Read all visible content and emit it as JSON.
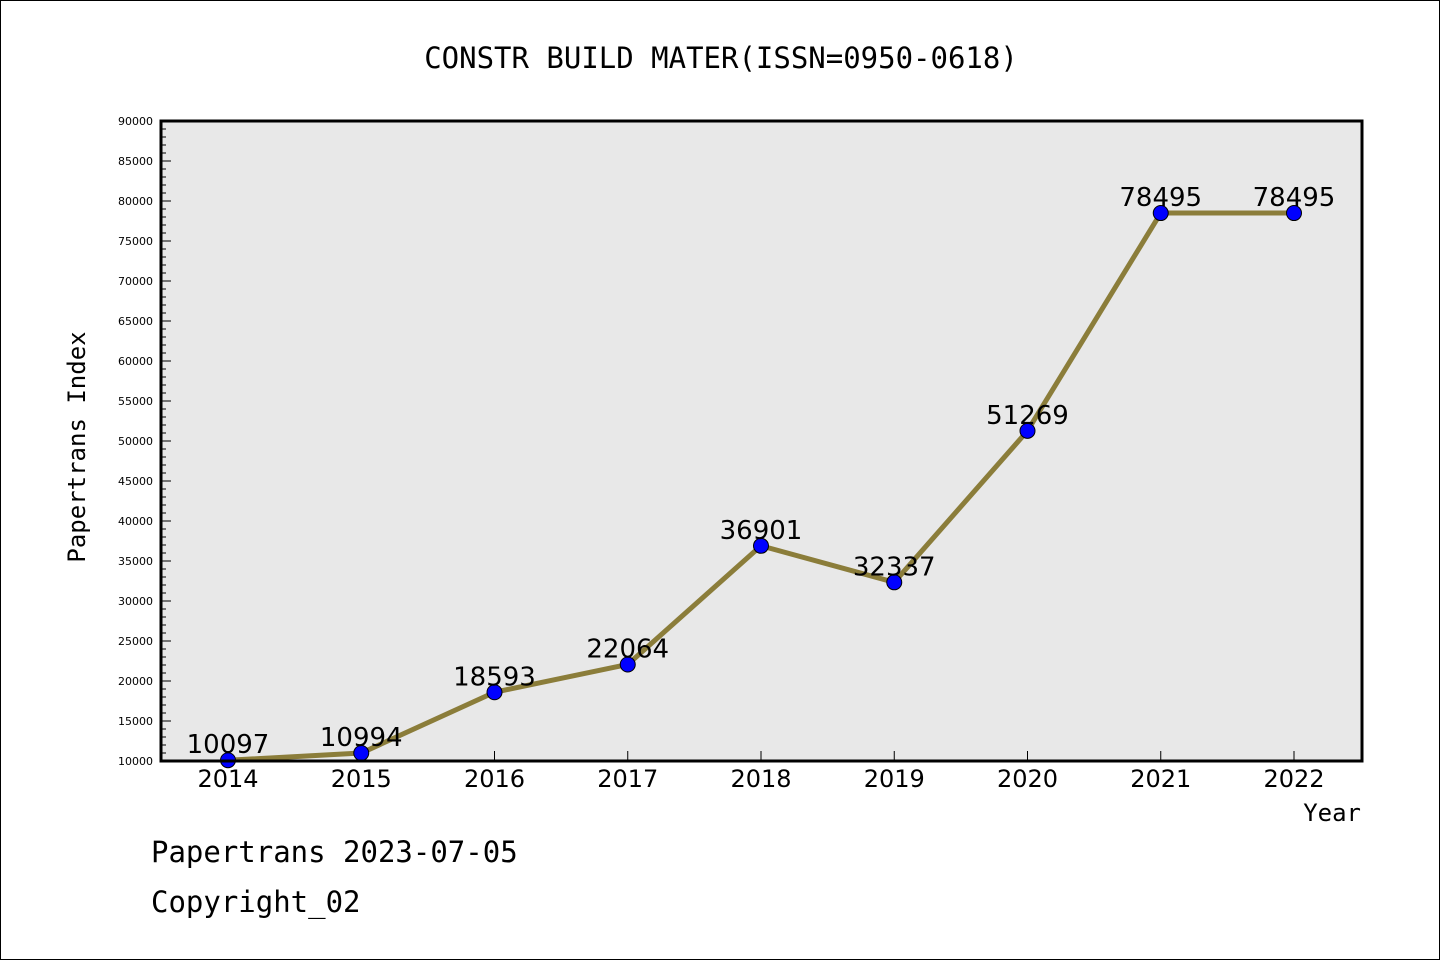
{
  "chart_data": {
    "type": "line",
    "title": "CONSTR BUILD MATER(ISSN=0950-0618)",
    "xlabel": "Year",
    "ylabel": "Papertrans Index",
    "categories": [
      "2014",
      "2015",
      "2016",
      "2017",
      "2018",
      "2019",
      "2020",
      "2021",
      "2022"
    ],
    "values": [
      10097,
      10994,
      18593,
      22064,
      36901,
      32337,
      51269,
      78495,
      78495
    ],
    "value_labels": [
      "10097",
      "10994",
      "18593",
      "22064",
      "36901",
      "32337",
      "51269",
      "78495",
      "78495"
    ],
    "ylim": [
      10000,
      90000
    ],
    "yticks": [
      10000,
      15000,
      20000,
      25000,
      30000,
      35000,
      40000,
      45000,
      50000,
      55000,
      60000,
      65000,
      70000,
      75000,
      80000,
      85000,
      90000
    ],
    "ytick_labels": [
      "10000",
      "15000",
      "20000",
      "25000",
      "30000",
      "35000",
      "40000",
      "45000",
      "50000",
      "55000",
      "60000",
      "65000",
      "70000",
      "75000",
      "80000",
      "85000",
      "90000"
    ],
    "grid": false,
    "colors": {
      "line": "#8b7d3a",
      "marker": "#0000ff",
      "plot_background": "#e8e8e8"
    }
  },
  "footer": {
    "line1": "Papertrans 2023-07-05",
    "line2": "Copyright_02"
  }
}
